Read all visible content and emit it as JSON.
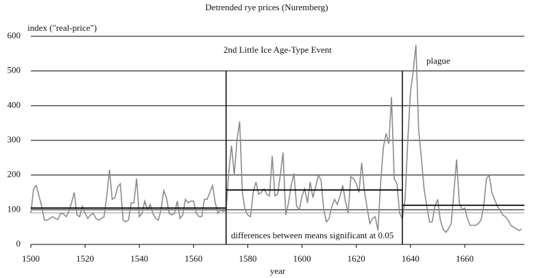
{
  "chart_data": {
    "type": "line",
    "title": "Detrended rye prices (Nuremberg)",
    "y_label": "index (\"real-price\")",
    "x_label": "year",
    "annotations": [
      "2nd Little Ice Age-Type Event",
      "plague",
      "differences between means significant at 0.05"
    ],
    "xlim": [
      1500,
      1682
    ],
    "xticks": [
      1500,
      1520,
      1540,
      1560,
      1580,
      1600,
      1620,
      1640,
      1660
    ],
    "ylim": [
      0,
      600
    ],
    "yticks": [
      0,
      100,
      200,
      300,
      400,
      500,
      600
    ],
    "grid": true,
    "dividers": [
      1572,
      1637
    ],
    "means": [
      {
        "start": 1500,
        "end": 1572,
        "value": 105
      },
      {
        "start": 1572,
        "end": 1637,
        "value": 157
      },
      {
        "start": 1637,
        "end": 1682,
        "value": 113
      }
    ],
    "overall_mean": 91,
    "series": [
      {
        "color": "#8a8a8a",
        "x": [
          1500,
          1501,
          1502,
          1503,
          1504,
          1505,
          1506,
          1507,
          1508,
          1509,
          1510,
          1511,
          1512,
          1513,
          1514,
          1515,
          1516,
          1517,
          1518,
          1519,
          1520,
          1521,
          1522,
          1523,
          1524,
          1525,
          1526,
          1527,
          1528,
          1529,
          1530,
          1531,
          1532,
          1533,
          1534,
          1535,
          1536,
          1537,
          1538,
          1539,
          1540,
          1541,
          1542,
          1543,
          1544,
          1545,
          1546,
          1547,
          1548,
          1549,
          1550,
          1551,
          1552,
          1553,
          1554,
          1555,
          1556,
          1557,
          1558,
          1559,
          1560,
          1561,
          1562,
          1563,
          1564,
          1565,
          1566,
          1567,
          1568,
          1569,
          1570,
          1571,
          1572,
          1573,
          1574,
          1575,
          1576,
          1577,
          1578,
          1579,
          1580,
          1581,
          1582,
          1583,
          1584,
          1585,
          1586,
          1587,
          1588,
          1589,
          1590,
          1591,
          1592,
          1593,
          1594,
          1595,
          1596,
          1597,
          1598,
          1599,
          1600,
          1601,
          1602,
          1603,
          1604,
          1605,
          1606,
          1607,
          1608,
          1609,
          1610,
          1611,
          1612,
          1613,
          1614,
          1615,
          1616,
          1617,
          1618,
          1619,
          1620,
          1621,
          1622,
          1623,
          1624,
          1625,
          1626,
          1627,
          1628,
          1629,
          1630,
          1631,
          1632,
          1633,
          1634,
          1635,
          1636,
          1637,
          1638,
          1639,
          1640,
          1641,
          1642,
          1643,
          1644,
          1645,
          1646,
          1647,
          1648,
          1649,
          1650,
          1651,
          1652,
          1653,
          1654,
          1655,
          1656,
          1657,
          1658,
          1659,
          1660,
          1661,
          1662,
          1663,
          1664,
          1665,
          1666,
          1667,
          1668,
          1669,
          1670,
          1671,
          1672,
          1673,
          1674,
          1675,
          1676,
          1677,
          1678,
          1679,
          1680,
          1681
        ],
        "values": [
          90,
          160,
          170,
          140,
          110,
          70,
          70,
          75,
          80,
          75,
          72,
          90,
          88,
          80,
          95,
          120,
          150,
          85,
          80,
          110,
          90,
          75,
          85,
          90,
          75,
          70,
          75,
          80,
          140,
          215,
          130,
          135,
          165,
          175,
          70,
          65,
          70,
          120,
          120,
          190,
          80,
          90,
          125,
          100,
          115,
          90,
          75,
          70,
          100,
          155,
          135,
          90,
          85,
          90,
          125,
          75,
          85,
          130,
          120,
          125,
          125,
          90,
          80,
          80,
          130,
          130,
          150,
          170,
          120,
          90,
          100,
          95,
          100,
          210,
          285,
          200,
          300,
          355,
          150,
          100,
          85,
          80,
          150,
          180,
          145,
          150,
          160,
          145,
          140,
          255,
          140,
          145,
          200,
          265,
          85,
          120,
          170,
          205,
          110,
          100,
          140,
          160,
          120,
          180,
          135,
          165,
          200,
          185,
          100,
          65,
          75,
          110,
          130,
          115,
          140,
          170,
          125,
          90,
          195,
          190,
          175,
          150,
          235,
          155,
          105,
          60,
          75,
          80,
          40,
          180,
          280,
          320,
          290,
          425,
          190,
          175,
          90,
          75,
          130,
          300,
          440,
          500,
          575,
          330,
          250,
          160,
          110,
          65,
          65,
          110,
          130,
          70,
          45,
          35,
          45,
          60,
          150,
          245,
          120,
          100,
          105,
          75,
          55,
          55,
          55,
          60,
          70,
          110,
          190,
          200,
          150,
          130,
          110,
          100,
          85,
          80,
          70,
          55,
          50,
          45,
          40,
          45
        ]
      }
    ]
  }
}
